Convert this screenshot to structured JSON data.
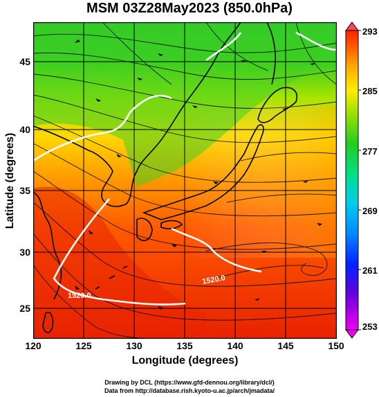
{
  "title": "MSM 03Z28May2023 (850.0hPa)",
  "x_axis": {
    "label": "Longitude (degrees)",
    "ticks": [
      "120",
      "125",
      "130",
      "135",
      "140",
      "145",
      "150"
    ],
    "range": [
      120,
      150
    ]
  },
  "y_axis": {
    "label": "Latitude  (degrees)",
    "ticks": [
      "25",
      "30",
      "35",
      "40",
      "45"
    ],
    "range": [
      22.4,
      47.6
    ]
  },
  "colorbar": {
    "ticks": [
      "293",
      "285",
      "277",
      "269",
      "261",
      "253"
    ],
    "range": [
      253,
      293
    ],
    "colors": [
      "#ee00ee",
      "#3300ff",
      "#0066ff",
      "#00ccff",
      "#00ee88",
      "#22cc22",
      "#88ee00",
      "#ffee00",
      "#ffaa00",
      "#ff6600",
      "#ff2200"
    ]
  },
  "contour_labels": [
    "1520.0",
    "1520.0"
  ],
  "credits": [
    "Drawing by DCL (https://www.gfd-dennou.org/library/dcl/)",
    "Data from http://database.rish.kyoto-u.ac.jp/arch/jmadata/"
  ]
}
